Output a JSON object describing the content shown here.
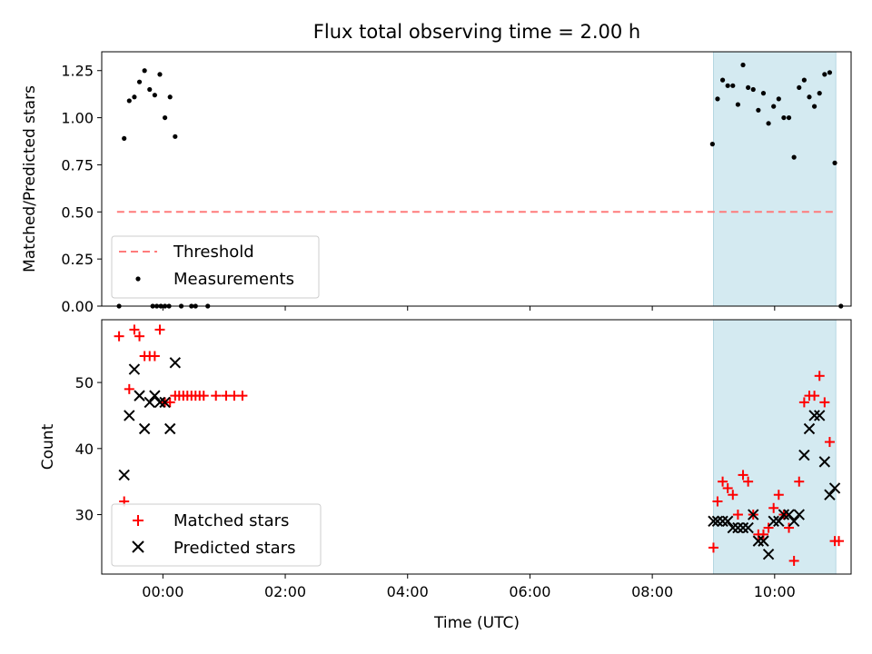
{
  "chart_data": [
    {
      "type": "scatter",
      "title": "Flux total observing time = 2.00 h",
      "ylabel": "Matched/Predicted stars",
      "xlim": [
        "23:00",
        "11:15"
      ],
      "ylim": [
        0,
        1.35
      ],
      "yticks": [
        "0.00",
        "0.25",
        "0.50",
        "0.75",
        "1.00",
        "1.25"
      ],
      "shaded_region": {
        "x": [
          "09:00",
          "11:00"
        ],
        "color": "#d4eaf1"
      },
      "threshold": {
        "name": "Threshold",
        "y": 0.5,
        "x": [
          "23:15",
          "11:00"
        ],
        "color": "#ff7b7b"
      },
      "series": [
        {
          "name": "Measurements",
          "color": "#000000",
          "points": [
            [
              "23:17",
              0.0
            ],
            [
              "23:22",
              0.89
            ],
            [
              "23:27",
              1.09
            ],
            [
              "23:32",
              1.11
            ],
            [
              "23:37",
              1.19
            ],
            [
              "23:42",
              1.25
            ],
            [
              "23:47",
              1.15
            ],
            [
              "23:52",
              1.12
            ],
            [
              "23:57",
              1.23
            ],
            [
              "00:02",
              1.0
            ],
            [
              "00:07",
              1.11
            ],
            [
              "00:12",
              0.9
            ],
            [
              "23:50",
              0.0
            ],
            [
              "23:54",
              0.0
            ],
            [
              "23:58",
              0.0
            ],
            [
              "00:02",
              0.0
            ],
            [
              "00:06",
              0.0
            ],
            [
              "00:18",
              0.0
            ],
            [
              "00:28",
              0.0
            ],
            [
              "00:32",
              0.0
            ],
            [
              "00:44",
              0.0
            ],
            [
              "08:59",
              0.86
            ],
            [
              "09:04",
              1.1
            ],
            [
              "09:09",
              1.2
            ],
            [
              "09:14",
              1.17
            ],
            [
              "09:19",
              1.17
            ],
            [
              "09:24",
              1.07
            ],
            [
              "09:29",
              1.28
            ],
            [
              "09:34",
              1.16
            ],
            [
              "09:39",
              1.15
            ],
            [
              "09:44",
              1.04
            ],
            [
              "09:49",
              1.13
            ],
            [
              "09:54",
              0.97
            ],
            [
              "09:59",
              1.06
            ],
            [
              "10:04",
              1.1
            ],
            [
              "10:09",
              1.0
            ],
            [
              "10:14",
              1.0
            ],
            [
              "10:19",
              0.79
            ],
            [
              "10:24",
              1.16
            ],
            [
              "10:29",
              1.2
            ],
            [
              "10:34",
              1.11
            ],
            [
              "10:39",
              1.06
            ],
            [
              "10:44",
              1.13
            ],
            [
              "10:49",
              1.23
            ],
            [
              "10:54",
              1.24
            ],
            [
              "10:59",
              0.76
            ],
            [
              "11:05",
              0.0
            ]
          ]
        }
      ]
    },
    {
      "type": "scatter",
      "xlabel": "Time (UTC)",
      "ylabel": "Count",
      "xlim": [
        "23:00",
        "11:15"
      ],
      "ylim": [
        21,
        59.5
      ],
      "yticks": [
        "30",
        "40",
        "50"
      ],
      "xticks": [
        "00:00",
        "02:00",
        "04:00",
        "06:00",
        "08:00",
        "10:00"
      ],
      "shaded_region": {
        "x": [
          "09:00",
          "11:00"
        ],
        "color": "#d4eaf1"
      },
      "series": [
        {
          "name": "Matched stars",
          "marker": "plus",
          "color": "#ff0000",
          "points": [
            [
              "23:17",
              57
            ],
            [
              "23:22",
              32
            ],
            [
              "23:27",
              49
            ],
            [
              "23:32",
              58
            ],
            [
              "23:37",
              57
            ],
            [
              "23:42",
              54
            ],
            [
              "23:47",
              54
            ],
            [
              "23:52",
              54
            ],
            [
              "23:57",
              58
            ],
            [
              "00:02",
              47
            ],
            [
              "00:07",
              47
            ],
            [
              "00:12",
              48
            ],
            [
              "00:16",
              48
            ],
            [
              "00:20",
              48
            ],
            [
              "00:24",
              48
            ],
            [
              "00:28",
              48
            ],
            [
              "00:32",
              48
            ],
            [
              "00:36",
              48
            ],
            [
              "00:40",
              48
            ],
            [
              "00:52",
              48
            ],
            [
              "01:02",
              48
            ],
            [
              "01:10",
              48
            ],
            [
              "01:18",
              48
            ],
            [
              "09:00",
              25
            ],
            [
              "09:04",
              32
            ],
            [
              "09:09",
              35
            ],
            [
              "09:14",
              34
            ],
            [
              "09:19",
              33
            ],
            [
              "09:24",
              30
            ],
            [
              "09:29",
              36
            ],
            [
              "09:34",
              35
            ],
            [
              "09:39",
              30
            ],
            [
              "09:44",
              27
            ],
            [
              "09:49",
              27
            ],
            [
              "09:54",
              28
            ],
            [
              "09:59",
              31
            ],
            [
              "10:04",
              33
            ],
            [
              "10:09",
              30
            ],
            [
              "10:14",
              28
            ],
            [
              "10:19",
              23
            ],
            [
              "10:24",
              35
            ],
            [
              "10:29",
              47
            ],
            [
              "10:34",
              48
            ],
            [
              "10:39",
              48
            ],
            [
              "10:44",
              51
            ],
            [
              "10:49",
              47
            ],
            [
              "10:54",
              41
            ],
            [
              "10:59",
              26
            ],
            [
              "11:03",
              26
            ]
          ]
        },
        {
          "name": "Predicted stars",
          "marker": "x",
          "color": "#000000",
          "points": [
            [
              "23:22",
              36
            ],
            [
              "23:27",
              45
            ],
            [
              "23:32",
              52
            ],
            [
              "23:37",
              48
            ],
            [
              "23:42",
              43
            ],
            [
              "23:47",
              47
            ],
            [
              "23:52",
              48
            ],
            [
              "23:57",
              47
            ],
            [
              "00:02",
              47
            ],
            [
              "00:07",
              43
            ],
            [
              "00:12",
              53
            ],
            [
              "09:00",
              29
            ],
            [
              "09:04",
              29
            ],
            [
              "09:09",
              29
            ],
            [
              "09:14",
              29
            ],
            [
              "09:19",
              28
            ],
            [
              "09:24",
              28
            ],
            [
              "09:29",
              28
            ],
            [
              "09:34",
              28
            ],
            [
              "09:39",
              30
            ],
            [
              "09:44",
              26
            ],
            [
              "09:49",
              26
            ],
            [
              "09:54",
              24
            ],
            [
              "09:59",
              29
            ],
            [
              "10:04",
              29
            ],
            [
              "10:09",
              30
            ],
            [
              "10:14",
              30
            ],
            [
              "10:19",
              29
            ],
            [
              "10:24",
              30
            ],
            [
              "10:29",
              39
            ],
            [
              "10:34",
              43
            ],
            [
              "10:39",
              45
            ],
            [
              "10:44",
              45
            ],
            [
              "10:49",
              38
            ],
            [
              "10:54",
              33
            ],
            [
              "10:59",
              34
            ]
          ]
        }
      ]
    }
  ]
}
